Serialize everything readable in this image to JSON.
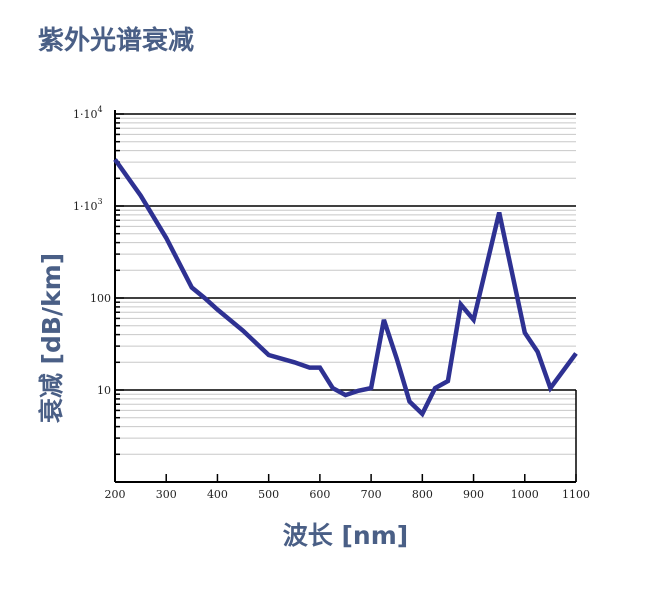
{
  "chart_data": {
    "type": "line",
    "title": "紫外光谱衰减",
    "xlabel": "波长 [nm]",
    "ylabel": "衰减 [dB/km]",
    "x_scale": "linear",
    "y_scale": "log",
    "xlim": [
      200,
      1100
    ],
    "ylim": [
      1,
      10000
    ],
    "x_ticks": [
      200,
      300,
      400,
      500,
      600,
      700,
      800,
      900,
      1000,
      1100
    ],
    "y_ticks": [
      {
        "value": 10,
        "label": "10"
      },
      {
        "value": 100,
        "label": "100"
      },
      {
        "value": 1000,
        "label": "1·10",
        "exp": "3"
      },
      {
        "value": 10000,
        "label": "1·10",
        "exp": "4"
      }
    ],
    "grid": true,
    "colors": {
      "line": "#2e3192",
      "axis": "#000000",
      "grid_major": "#000000",
      "grid_minor": "#c8c8c8",
      "text": "#4a5f86"
    },
    "series": [
      {
        "x": [
          200,
          250,
          300,
          350,
          375,
          400,
          450,
          500,
          550,
          580,
          600,
          625,
          650,
          675,
          700,
          725,
          750,
          775,
          800,
          825,
          850,
          875,
          900,
          950,
          1000,
          1025,
          1050,
          1100
        ],
        "y": [
          3200,
          1300,
          450,
          130,
          100,
          75,
          44,
          24,
          20,
          17.5,
          17.5,
          10.5,
          8.8,
          9.8,
          10.5,
          58,
          22,
          7.5,
          5.5,
          10.5,
          12.5,
          85,
          58,
          850,
          42,
          26,
          10.5,
          25
        ]
      }
    ]
  }
}
